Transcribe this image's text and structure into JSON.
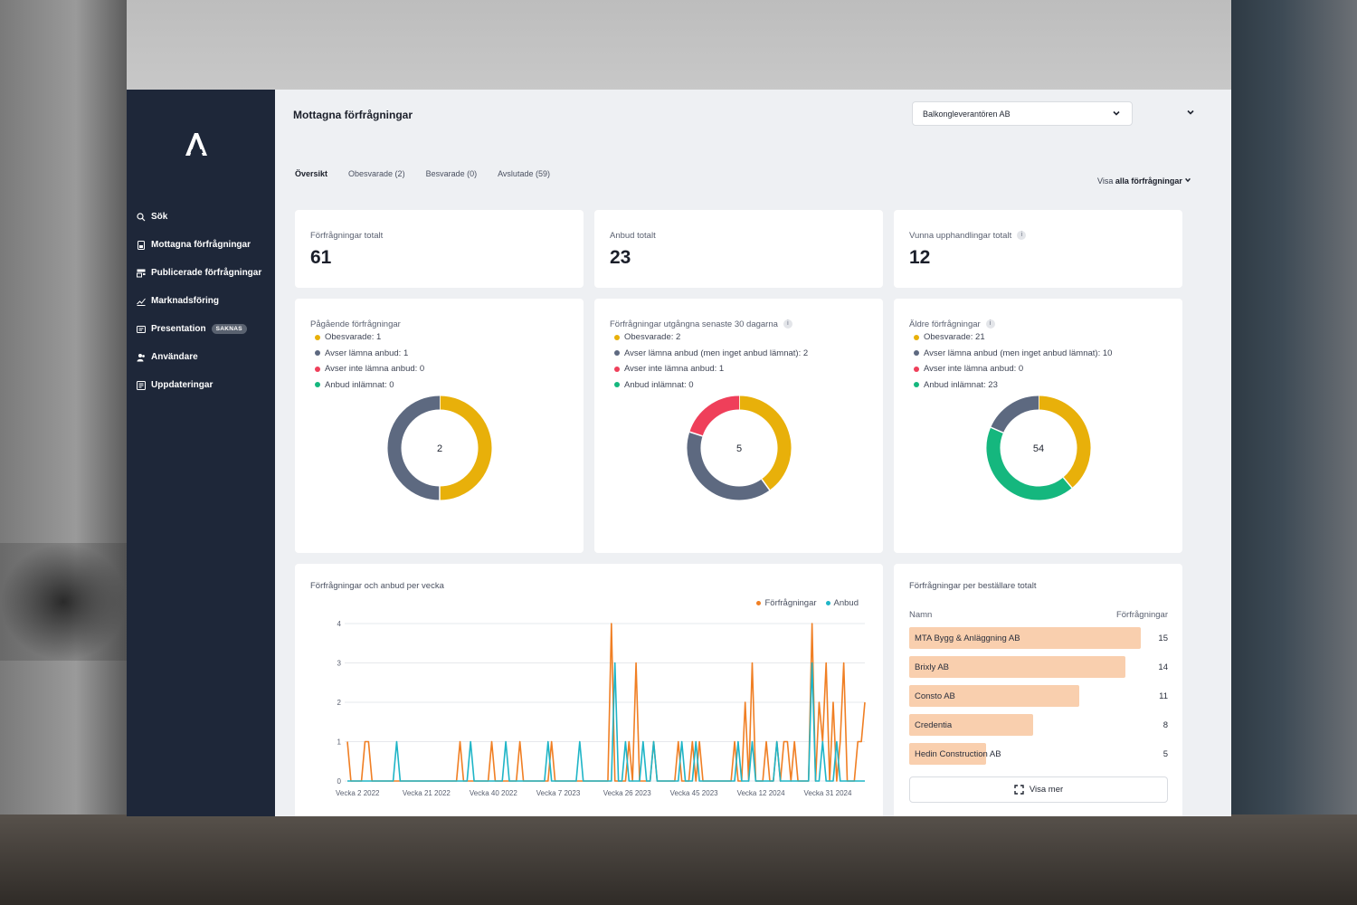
{
  "colors": {
    "sidebar": "#1e2739",
    "obesvarade": "#e8b00a",
    "avser_lamna": "#5d6980",
    "avser_inte": "#ef3f5a",
    "anbud_inlamnat": "#15b77e",
    "forfragningar_line": "#f07f24",
    "anbud_line": "#1fb5c7",
    "bar_fill": "#f9cfae"
  },
  "sidebar": {
    "logo_icon": "brand-a-logo",
    "items": [
      {
        "label": "Sök",
        "icon": "search-icon"
      },
      {
        "label": "Mottagna förfrågningar",
        "icon": "document-icon"
      },
      {
        "label": "Publicerade förfrågningar",
        "icon": "publish-icon"
      },
      {
        "label": "Marknadsföring",
        "icon": "chart-icon"
      },
      {
        "label": "Presentation",
        "icon": "presentation-icon",
        "badge": "SAKNAS"
      },
      {
        "label": "Användare",
        "icon": "users-icon"
      },
      {
        "label": "Uppdateringar",
        "icon": "updates-icon"
      }
    ]
  },
  "header": {
    "title": "Mottagna förfrågningar",
    "company": "Balkongleverantören AB"
  },
  "tabs": [
    {
      "label": "Översikt"
    },
    {
      "label": "Obesvarade (2)"
    },
    {
      "label": "Besvarade (0)"
    },
    {
      "label": "Avslutade (59)"
    }
  ],
  "view_all": {
    "prefix": "Visa",
    "bold": "alla förfrågningar"
  },
  "stats": [
    {
      "label": "Förfrågningar totalt",
      "value": "61"
    },
    {
      "label": "Anbud totalt",
      "value": "23"
    },
    {
      "label": "Vunna upphandlingar totalt",
      "value": "12",
      "info": "i"
    }
  ],
  "donuts": [
    {
      "title": "Pågående förfrågningar",
      "center": "2",
      "items": [
        {
          "label": "Obesvarade: 1",
          "value": 1,
          "key": "obesvarade"
        },
        {
          "label": "Avser lämna anbud: 1",
          "value": 1,
          "key": "avser_lamna"
        },
        {
          "label": "Avser inte lämna anbud: 0",
          "value": 0,
          "key": "avser_inte"
        },
        {
          "label": "Anbud inlämnat: 0",
          "value": 0,
          "key": "anbud_inlamnat"
        }
      ]
    },
    {
      "title": "Förfrågningar utgångna senaste 30 dagarna",
      "info": "i",
      "center": "5",
      "items": [
        {
          "label": "Obesvarade: 2",
          "value": 2,
          "key": "obesvarade"
        },
        {
          "label": "Avser lämna anbud (men inget anbud lämnat): 2",
          "value": 2,
          "key": "avser_lamna"
        },
        {
          "label": "Avser inte lämna anbud: 1",
          "value": 1,
          "key": "avser_inte"
        },
        {
          "label": "Anbud inlämnat: 0",
          "value": 0,
          "key": "anbud_inlamnat"
        }
      ]
    },
    {
      "title": "Äldre förfrågningar",
      "info": "i",
      "center": "54",
      "items": [
        {
          "label": "Obesvarade: 21",
          "value": 21,
          "key": "obesvarade"
        },
        {
          "label": "Avser lämna anbud (men inget anbud lämnat): 10",
          "value": 10,
          "key": "avser_lamna"
        },
        {
          "label": "Avser inte lämna anbud: 0",
          "value": 0,
          "key": "avser_inte"
        },
        {
          "label": "Anbud inlämnat: 23",
          "value": 23,
          "key": "anbud_inlamnat"
        }
      ]
    }
  ],
  "chart_data": {
    "type": "line",
    "title": "Förfrågningar och anbud per vecka",
    "legend_position": "top-right",
    "grid": true,
    "ylim": [
      0,
      4
    ],
    "yticks": [
      "0",
      "1",
      "2",
      "3",
      "4"
    ],
    "xtick_labels": [
      "Vecka 2 2022",
      "Vecka 21 2022",
      "Vecka 40 2022",
      "Vecka 7 2023",
      "Vecka 26 2023",
      "Vecka 45 2023",
      "Vecka 12 2024",
      "Vecka 31 2024"
    ],
    "xtick_positions": [
      0,
      19,
      38,
      57,
      76,
      95,
      114,
      133
    ],
    "series": [
      {
        "name": "Förfrågningar",
        "color_key": "forfragningar_line",
        "values": [
          1,
          0,
          0,
          0,
          0,
          1,
          1,
          0,
          0,
          0,
          0,
          0,
          0,
          0,
          0,
          0,
          0,
          0,
          0,
          0,
          0,
          0,
          0,
          0,
          0,
          0,
          0,
          0,
          0,
          0,
          0,
          0,
          1,
          0,
          0,
          0,
          0,
          0,
          0,
          0,
          0,
          1,
          0,
          0,
          0,
          0,
          0,
          0,
          0,
          1,
          0,
          0,
          0,
          0,
          0,
          0,
          0,
          0,
          1,
          0,
          0,
          0,
          0,
          0,
          0,
          0,
          0,
          0,
          0,
          0,
          0,
          0,
          0,
          0,
          0,
          4,
          0,
          0,
          0,
          0,
          1,
          0,
          3,
          0,
          0,
          0,
          0,
          1,
          0,
          0,
          0,
          0,
          0,
          0,
          1,
          0,
          0,
          0,
          1,
          0,
          1,
          0,
          0,
          0,
          0,
          0,
          0,
          0,
          0,
          0,
          1,
          0,
          0,
          2,
          0,
          3,
          0,
          0,
          0,
          1,
          0,
          0,
          1,
          0,
          1,
          1,
          0,
          1,
          0,
          0,
          0,
          0,
          4,
          0,
          2,
          1,
          3,
          0,
          2,
          0,
          1,
          3,
          0,
          0,
          0,
          1,
          1,
          2
        ]
      },
      {
        "name": "Anbud",
        "color_key": "anbud_line",
        "values": [
          0,
          0,
          0,
          0,
          0,
          0,
          0,
          0,
          0,
          0,
          0,
          0,
          0,
          0,
          1,
          0,
          0,
          0,
          0,
          0,
          0,
          0,
          0,
          0,
          0,
          0,
          0,
          0,
          0,
          0,
          0,
          0,
          0,
          0,
          0,
          1,
          0,
          0,
          0,
          0,
          0,
          0,
          0,
          0,
          0,
          1,
          0,
          0,
          0,
          0,
          0,
          0,
          0,
          0,
          0,
          0,
          0,
          1,
          0,
          0,
          0,
          0,
          0,
          0,
          0,
          0,
          1,
          0,
          0,
          0,
          0,
          0,
          0,
          0,
          0,
          0,
          3,
          0,
          0,
          1,
          0,
          0,
          0,
          0,
          1,
          0,
          0,
          1,
          0,
          0,
          0,
          0,
          0,
          0,
          0,
          1,
          0,
          0,
          0,
          1,
          0,
          0,
          0,
          0,
          0,
          0,
          0,
          0,
          0,
          0,
          0,
          1,
          0,
          0,
          0,
          1,
          0,
          0,
          0,
          0,
          0,
          0,
          1,
          0,
          0,
          0,
          0,
          0,
          0,
          0,
          0,
          0,
          3,
          0,
          0,
          1,
          0,
          0,
          0,
          1,
          0,
          0,
          0,
          0,
          0,
          0,
          0,
          0
        ]
      }
    ]
  },
  "customers": {
    "title": "Förfrågningar per beställare totalt",
    "col_name": "Namn",
    "col_count": "Förfrågningar",
    "max": 15,
    "rows": [
      {
        "name": "MTA Bygg & Anläggning AB",
        "count": "15",
        "value": 15
      },
      {
        "name": "Brixly AB",
        "count": "14",
        "value": 14
      },
      {
        "name": "Consto AB",
        "count": "11",
        "value": 11
      },
      {
        "name": "Credentia",
        "count": "8",
        "value": 8
      },
      {
        "name": "Hedin Construction AB",
        "count": "5",
        "value": 5
      }
    ],
    "show_more": "Visa mer"
  }
}
